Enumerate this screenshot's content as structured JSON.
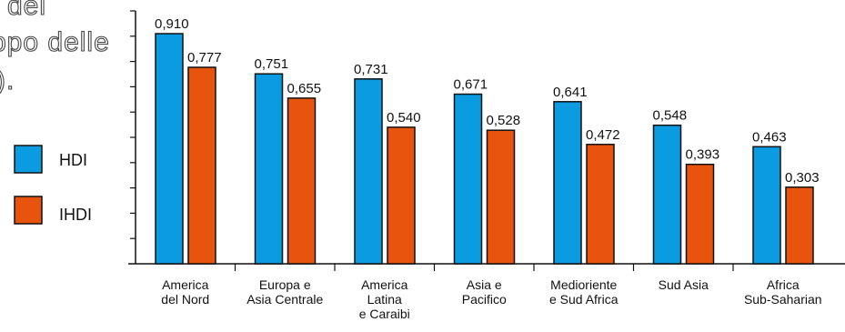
{
  "caption_fragment": [
    "del",
    "ppo delle",
    ")."
  ],
  "chart_data": {
    "type": "bar",
    "categories": [
      [
        "America",
        "del Nord"
      ],
      [
        "Europa e",
        "Asia Centrale"
      ],
      [
        "America",
        "Latina",
        "e Caraibi"
      ],
      [
        "Asia e",
        "Pacifico"
      ],
      [
        "Medioriente",
        "e Sud Africa"
      ],
      [
        "Sud Asia"
      ],
      [
        "Africa",
        "Sub-Saharian"
      ]
    ],
    "series": [
      {
        "name": "HDI",
        "color": "#0a9be0",
        "values": [
          0.91,
          0.751,
          0.731,
          0.671,
          0.641,
          0.548,
          0.463
        ],
        "labels": [
          "0,910",
          "0,751",
          "0,731",
          "0,671",
          "0,641",
          "0,548",
          "0,463"
        ]
      },
      {
        "name": "IHDI",
        "color": "#e8530e",
        "values": [
          0.777,
          0.655,
          0.54,
          0.528,
          0.472,
          0.393,
          0.303
        ],
        "labels": [
          "0,777",
          "0,655",
          "0,540",
          "0,528",
          "0,472",
          "0,393",
          "0,303"
        ]
      }
    ],
    "ylim": [
      0,
      1.0
    ],
    "legend_position": "left",
    "grid": false
  }
}
